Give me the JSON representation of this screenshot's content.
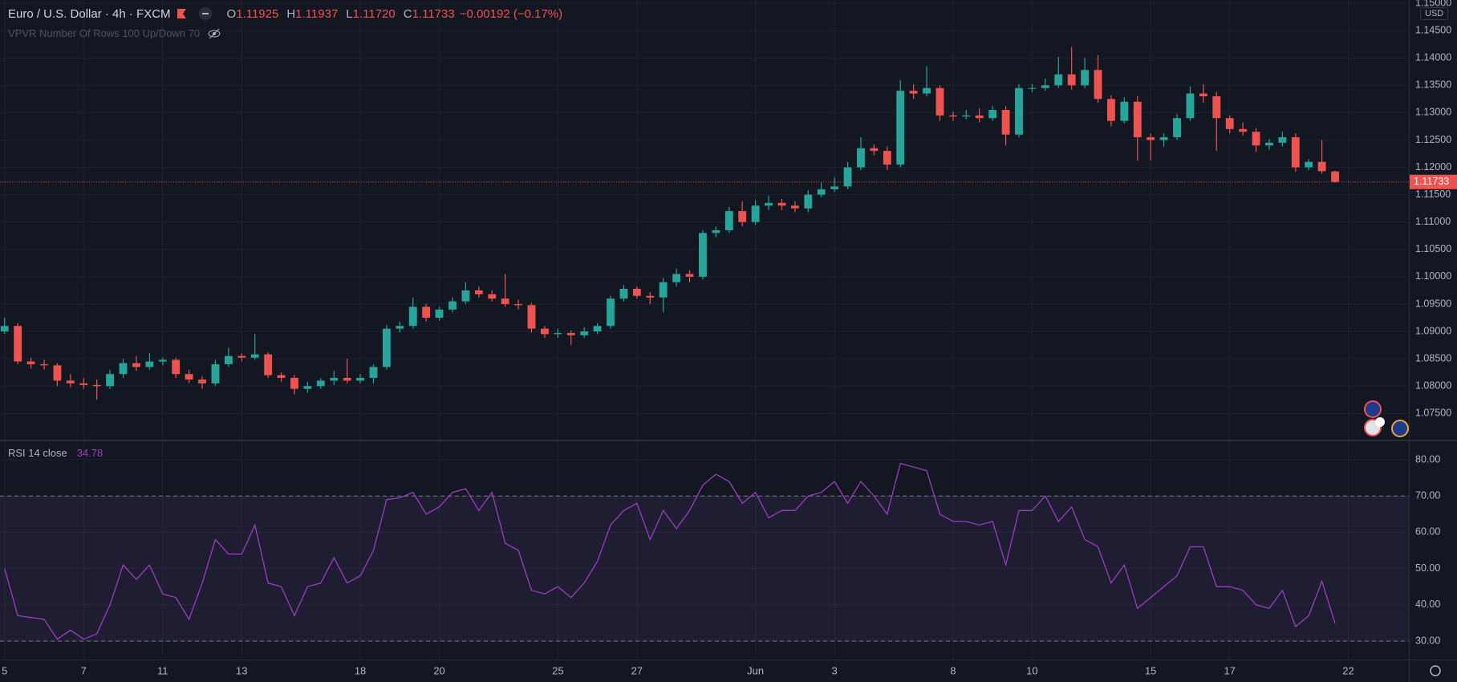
{
  "chart_data": {
    "type": "candlestick",
    "title": "Euro / U.S. Dollar · 4h · FXCM",
    "ohlc_labels": [
      "O",
      "H",
      "L",
      "C"
    ],
    "last_labels": [
      "1.11925",
      "1.11937",
      "1.11720",
      "1.11733"
    ],
    "change_label": "−0.00192 (−0.17%)",
    "indicator_label": "VPVR Number Of Rows 100 Up/Down 70",
    "currency": "USD",
    "up_color": "#26a69a",
    "down_color": "#ef5350",
    "grid": true,
    "ohlc": [
      [
        1.09,
        1.0925,
        1.0895,
        1.091
      ],
      [
        1.091,
        1.0915,
        1.084,
        1.0845
      ],
      [
        1.0845,
        1.0852,
        1.0832,
        1.084
      ],
      [
        1.084,
        1.0848,
        1.083,
        1.0838
      ],
      [
        1.0838,
        1.0842,
        1.08,
        1.081
      ],
      [
        1.081,
        1.0822,
        1.0798,
        1.0805
      ],
      [
        1.0805,
        1.0815,
        1.0795,
        1.0802
      ],
      [
        1.0802,
        1.0812,
        1.0775,
        1.08
      ],
      [
        1.08,
        1.083,
        1.0795,
        1.0822
      ],
      [
        1.0822,
        1.085,
        1.0815,
        1.0842
      ],
      [
        1.0842,
        1.0855,
        1.0828,
        1.0835
      ],
      [
        1.0835,
        1.086,
        1.083,
        1.0845
      ],
      [
        1.0845,
        1.0852,
        1.0838,
        1.0848
      ],
      [
        1.0848,
        1.0852,
        1.0815,
        1.0822
      ],
      [
        1.0822,
        1.083,
        1.0805,
        1.0812
      ],
      [
        1.0812,
        1.0818,
        1.0795,
        1.0805
      ],
      [
        1.0805,
        1.0848,
        1.08,
        1.084
      ],
      [
        1.084,
        1.087,
        1.0835,
        1.0855
      ],
      [
        1.0855,
        1.086,
        1.0845,
        1.0852
      ],
      [
        1.0852,
        1.0895,
        1.0848,
        1.0858
      ],
      [
        1.0858,
        1.0862,
        1.0815,
        1.082
      ],
      [
        1.082,
        1.0825,
        1.0808,
        1.0815
      ],
      [
        1.0815,
        1.082,
        1.0785,
        1.0795
      ],
      [
        1.0795,
        1.0808,
        1.0788,
        1.08
      ],
      [
        1.08,
        1.0815,
        1.0795,
        1.081
      ],
      [
        1.081,
        1.0828,
        1.0802,
        1.0815
      ],
      [
        1.0815,
        1.085,
        1.0805,
        1.081
      ],
      [
        1.081,
        1.0822,
        1.0805,
        1.0815
      ],
      [
        1.0815,
        1.084,
        1.0805,
        1.0835
      ],
      [
        1.0835,
        1.0912,
        1.083,
        1.0905
      ],
      [
        1.0905,
        1.0918,
        1.0898,
        1.091
      ],
      [
        1.091,
        1.0962,
        1.0905,
        1.0945
      ],
      [
        1.0945,
        1.095,
        1.0918,
        1.0925
      ],
      [
        1.0925,
        1.0945,
        1.092,
        1.094
      ],
      [
        1.094,
        1.0962,
        1.0935,
        1.0955
      ],
      [
        1.0955,
        1.099,
        1.095,
        1.0975
      ],
      [
        1.0975,
        1.0982,
        1.0962,
        1.0968
      ],
      [
        1.0968,
        1.0975,
        1.0955,
        1.096
      ],
      [
        1.096,
        1.1005,
        1.0945,
        1.095
      ],
      [
        1.095,
        1.0958,
        1.094,
        1.0948
      ],
      [
        1.0948,
        1.0952,
        1.0898,
        1.0905
      ],
      [
        1.0905,
        1.091,
        1.0888,
        1.0895
      ],
      [
        1.0895,
        1.0905,
        1.0888,
        1.0897
      ],
      [
        1.0897,
        1.0902,
        1.0875,
        1.0893
      ],
      [
        1.0893,
        1.0908,
        1.0888,
        1.09
      ],
      [
        1.09,
        1.0915,
        1.0895,
        1.091
      ],
      [
        1.091,
        1.0965,
        1.0905,
        1.096
      ],
      [
        1.096,
        1.0985,
        1.0955,
        1.0978
      ],
      [
        1.0978,
        1.0982,
        1.096,
        1.0965
      ],
      [
        1.0965,
        1.0972,
        1.095,
        1.0962
      ],
      [
        1.0962,
        1.0998,
        1.0935,
        1.099
      ],
      [
        1.099,
        1.1015,
        1.0982,
        1.1005
      ],
      [
        1.1005,
        1.1012,
        1.099,
        1.1
      ],
      [
        1.1,
        1.1085,
        1.0995,
        1.108
      ],
      [
        1.108,
        1.1092,
        1.1072,
        1.1085
      ],
      [
        1.1085,
        1.1128,
        1.108,
        1.112
      ],
      [
        1.112,
        1.1138,
        1.1092,
        1.11
      ],
      [
        1.11,
        1.114,
        1.1095,
        1.113
      ],
      [
        1.113,
        1.1148,
        1.1122,
        1.1135
      ],
      [
        1.1135,
        1.1142,
        1.1122,
        1.113
      ],
      [
        1.113,
        1.1138,
        1.1118,
        1.1125
      ],
      [
        1.1125,
        1.1158,
        1.1118,
        1.115
      ],
      [
        1.115,
        1.1172,
        1.1145,
        1.116
      ],
      [
        1.116,
        1.1182,
        1.1155,
        1.1165
      ],
      [
        1.1165,
        1.121,
        1.116,
        1.12
      ],
      [
        1.12,
        1.1255,
        1.1195,
        1.1235
      ],
      [
        1.1235,
        1.1242,
        1.1222,
        1.123
      ],
      [
        1.123,
        1.1238,
        1.1195,
        1.1205
      ],
      [
        1.1205,
        1.136,
        1.12,
        1.134
      ],
      [
        1.134,
        1.1352,
        1.1325,
        1.1335
      ],
      [
        1.1335,
        1.1385,
        1.133,
        1.1345
      ],
      [
        1.1345,
        1.135,
        1.1285,
        1.1295
      ],
      [
        1.1295,
        1.1302,
        1.1285,
        1.1293
      ],
      [
        1.1293,
        1.1305,
        1.1288,
        1.1295
      ],
      [
        1.1295,
        1.1308,
        1.1282,
        1.129
      ],
      [
        1.129,
        1.1312,
        1.1285,
        1.1305
      ],
      [
        1.1305,
        1.1312,
        1.124,
        1.126
      ],
      [
        1.126,
        1.1352,
        1.1255,
        1.1345
      ],
      [
        1.1345,
        1.1352,
        1.1338,
        1.1345
      ],
      [
        1.1345,
        1.1362,
        1.134,
        1.135
      ],
      [
        1.135,
        1.1402,
        1.1345,
        1.137
      ],
      [
        1.137,
        1.142,
        1.1342,
        1.135
      ],
      [
        1.135,
        1.14,
        1.1345,
        1.1378
      ],
      [
        1.1378,
        1.1405,
        1.1318,
        1.1325
      ],
      [
        1.1325,
        1.1332,
        1.1275,
        1.1285
      ],
      [
        1.1285,
        1.1328,
        1.128,
        1.132
      ],
      [
        1.132,
        1.133,
        1.1212,
        1.1255
      ],
      [
        1.1255,
        1.1262,
        1.1212,
        1.125
      ],
      [
        1.125,
        1.1262,
        1.1238,
        1.1255
      ],
      [
        1.1255,
        1.1298,
        1.125,
        1.129
      ],
      [
        1.129,
        1.1348,
        1.1285,
        1.1335
      ],
      [
        1.1335,
        1.1352,
        1.1318,
        1.133
      ],
      [
        1.133,
        1.1338,
        1.123,
        1.129
      ],
      [
        1.129,
        1.1295,
        1.1262,
        1.127
      ],
      [
        1.127,
        1.1282,
        1.1258,
        1.1265
      ],
      [
        1.1265,
        1.1272,
        1.1228,
        1.124
      ],
      [
        1.124,
        1.1252,
        1.1232,
        1.1245
      ],
      [
        1.1245,
        1.1265,
        1.1238,
        1.1255
      ],
      [
        1.1255,
        1.1262,
        1.1192,
        1.12
      ],
      [
        1.12,
        1.1215,
        1.1195,
        1.121
      ],
      [
        1.121,
        1.125,
        1.1188,
        1.1193
      ],
      [
        1.11925,
        1.11937,
        1.1172,
        1.11733
      ]
    ],
    "xlim": [
      -0.35,
      106.6
    ],
    "xticks": [
      {
        "value": 0,
        "label": "5"
      },
      {
        "value": 6,
        "label": "7"
      },
      {
        "value": 12,
        "label": "11"
      },
      {
        "value": 18,
        "label": "13"
      },
      {
        "value": 27,
        "label": "18"
      },
      {
        "value": 33,
        "label": "20"
      },
      {
        "value": 42,
        "label": "25"
      },
      {
        "value": 48,
        "label": "27"
      },
      {
        "value": 57,
        "label": "Jun"
      },
      {
        "value": 63,
        "label": "3"
      },
      {
        "value": 72,
        "label": "8"
      },
      {
        "value": 78,
        "label": "10"
      },
      {
        "value": 87,
        "label": "15"
      },
      {
        "value": 93,
        "label": "17"
      },
      {
        "value": 102,
        "label": "22"
      }
    ],
    "ylim": [
      1.0702,
      1.1506
    ],
    "yticks": [
      {
        "value": 1.075,
        "label": "1.07500"
      },
      {
        "value": 1.08,
        "label": "1.08000"
      },
      {
        "value": 1.085,
        "label": "1.08500"
      },
      {
        "value": 1.09,
        "label": "1.09000"
      },
      {
        "value": 1.095,
        "label": "1.09500"
      },
      {
        "value": 1.1,
        "label": "1.10000"
      },
      {
        "value": 1.105,
        "label": "1.10500"
      },
      {
        "value": 1.11,
        "label": "1.11000"
      },
      {
        "value": 1.115,
        "label": "1.11500"
      },
      {
        "value": 1.12,
        "label": "1.12000"
      },
      {
        "value": 1.125,
        "label": "1.12500"
      },
      {
        "value": 1.13,
        "label": "1.13000"
      },
      {
        "value": 1.135,
        "label": "1.13500"
      },
      {
        "value": 1.14,
        "label": "1.14000"
      },
      {
        "value": 1.145,
        "label": "1.14500"
      },
      {
        "value": 1.15,
        "label": "1.15000"
      }
    ],
    "rsi": {
      "type": "line",
      "name": "RSI 14 close",
      "color": "#9b3fc0",
      "values": [
        50,
        37,
        36.5,
        36,
        30.5,
        33,
        30.5,
        32,
        40,
        51,
        47,
        51,
        43,
        42,
        36,
        46,
        58,
        54,
        54,
        62,
        46,
        45,
        37,
        45,
        46,
        53,
        46,
        48,
        55,
        69,
        69.5,
        71,
        65,
        67,
        71,
        72,
        66,
        71,
        57,
        55,
        44,
        43,
        45,
        42,
        46,
        52,
        62,
        66,
        68,
        58,
        66,
        61,
        66,
        73,
        76,
        74,
        68,
        71,
        64,
        66,
        66,
        70,
        71,
        74,
        68,
        74,
        70,
        65,
        79,
        78,
        77,
        65,
        63,
        63,
        62,
        63,
        51,
        66,
        66,
        70,
        63,
        67,
        58,
        56,
        46,
        51,
        39,
        42,
        45,
        48,
        56,
        56,
        45,
        45,
        44,
        40,
        39,
        44,
        34,
        37,
        46.5,
        34.78
      ],
      "ylim": [
        24.9,
        85.1
      ],
      "yticks": [
        {
          "value": 30,
          "label": "30.00"
        },
        {
          "value": 40,
          "label": "40.00"
        },
        {
          "value": 50,
          "label": "50.00"
        },
        {
          "value": 60,
          "label": "60.00"
        },
        {
          "value": 70,
          "label": "70.00"
        },
        {
          "value": 80,
          "label": "80.00"
        }
      ],
      "bands": [
        30,
        70
      ]
    }
  }
}
